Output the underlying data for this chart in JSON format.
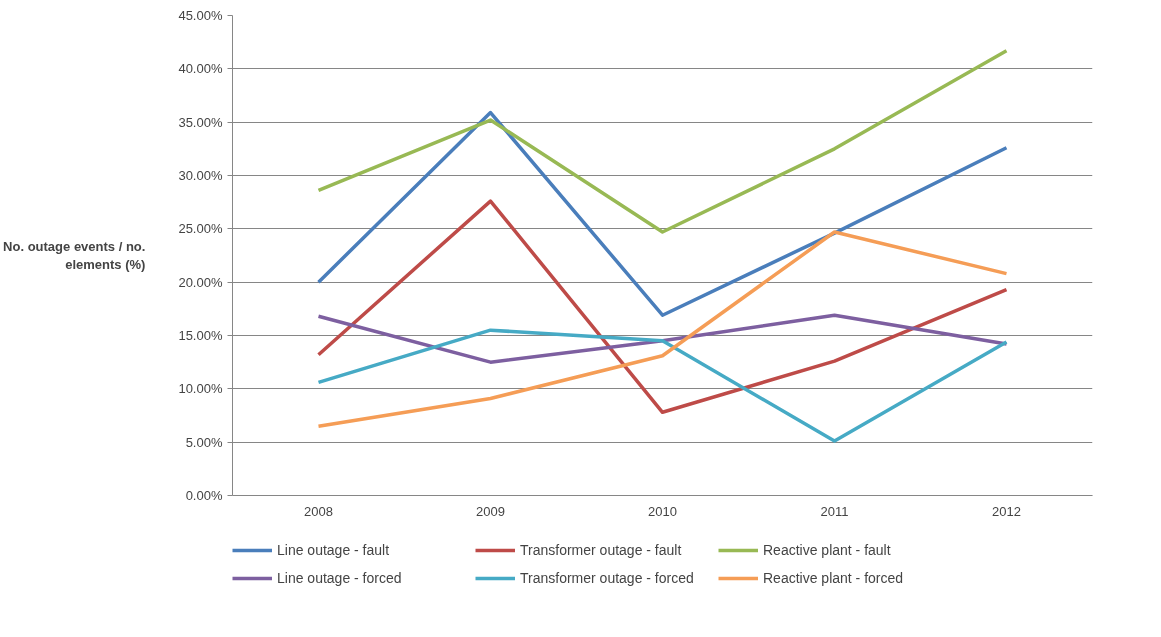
{
  "chart_data": {
    "type": "line",
    "ylabel": "No. outage events / no. elements (%)",
    "categories": [
      "2008",
      "2009",
      "2010",
      "2011",
      "2012"
    ],
    "series": [
      {
        "name": "Line outage - fault",
        "color": "#4a7ebb",
        "values": [
          20.0,
          35.9,
          16.9,
          24.6,
          32.6
        ]
      },
      {
        "name": "Transformer outage - fault",
        "color": "#be4b48",
        "values": [
          13.2,
          27.6,
          7.8,
          12.6,
          19.3
        ]
      },
      {
        "name": "Reactive plant - fault",
        "color": "#98b954",
        "values": [
          28.6,
          35.2,
          24.7,
          32.5,
          41.7
        ]
      },
      {
        "name": "Line outage - forced",
        "color": "#7d5fa0",
        "values": [
          16.8,
          12.5,
          14.5,
          16.9,
          14.2
        ]
      },
      {
        "name": "Transformer outage - forced",
        "color": "#46aac5",
        "values": [
          10.6,
          15.5,
          14.5,
          5.1,
          14.4
        ]
      },
      {
        "name": "Reactive plant - forced",
        "color": "#f59d56",
        "values": [
          6.5,
          9.1,
          13.1,
          24.7,
          20.8
        ]
      }
    ],
    "ylim": [
      0,
      45
    ],
    "yticks": [
      {
        "value": 0,
        "label": "0.00%"
      },
      {
        "value": 5,
        "label": "5.00%"
      },
      {
        "value": 10,
        "label": "10.00%"
      },
      {
        "value": 15,
        "label": "15.00%"
      },
      {
        "value": 20,
        "label": "20.00%"
      },
      {
        "value": 25,
        "label": "25.00%"
      },
      {
        "value": 30,
        "label": "30.00%"
      },
      {
        "value": 35,
        "label": "35.00%"
      },
      {
        "value": 40,
        "label": "40.00%"
      },
      {
        "value": 45,
        "label": "45.00%"
      }
    ],
    "grid": "y",
    "legend": "bottom",
    "marker": "none",
    "line_style": "solid"
  }
}
